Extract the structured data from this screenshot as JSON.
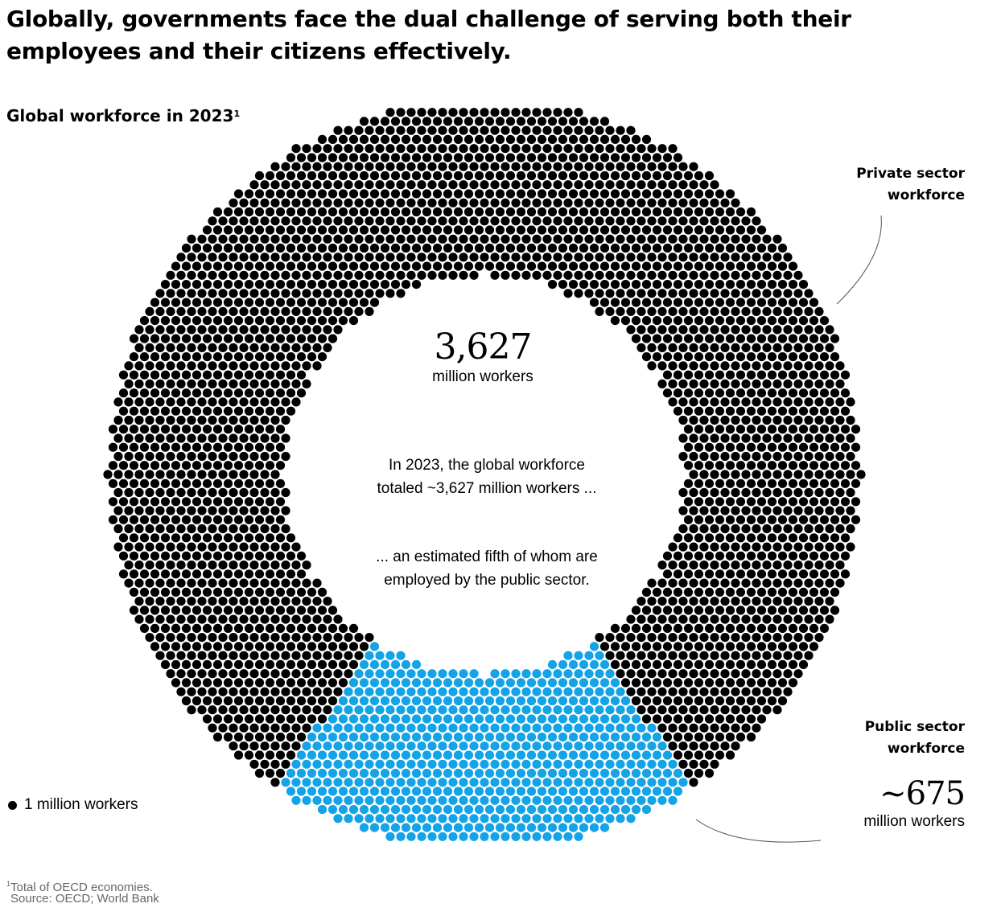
{
  "headline": "Globally, governments face the dual challenge of serving both their employees and their citizens effectively.",
  "subtitle": "Global workforce in 2023",
  "subtitle_note_marker": "1",
  "center": {
    "total": "3,627",
    "unit": "million workers",
    "note_1": "In 2023, the global workforce totaled ~3,627 million workers ...",
    "note_2": "... an estimated fifth of whom are employed by the public sector."
  },
  "labels": {
    "private": "Private sector workforce",
    "public": "Public sector workforce",
    "public_total": "~675",
    "public_unit": "million workers"
  },
  "legend": {
    "label": "1 million workers"
  },
  "footnote": {
    "marker": "1",
    "text": "Total of OECD economies."
  },
  "source": "Source: OECD; World Bank",
  "chart_data": {
    "type": "pie",
    "variant": "dot-donut",
    "unit": "million workers",
    "total": 3627,
    "categories": [
      "Private sector workforce",
      "Public sector workforce"
    ],
    "values": [
      2952,
      675
    ],
    "colors": {
      "private": "#000000",
      "public": "#14a3e6"
    }
  }
}
